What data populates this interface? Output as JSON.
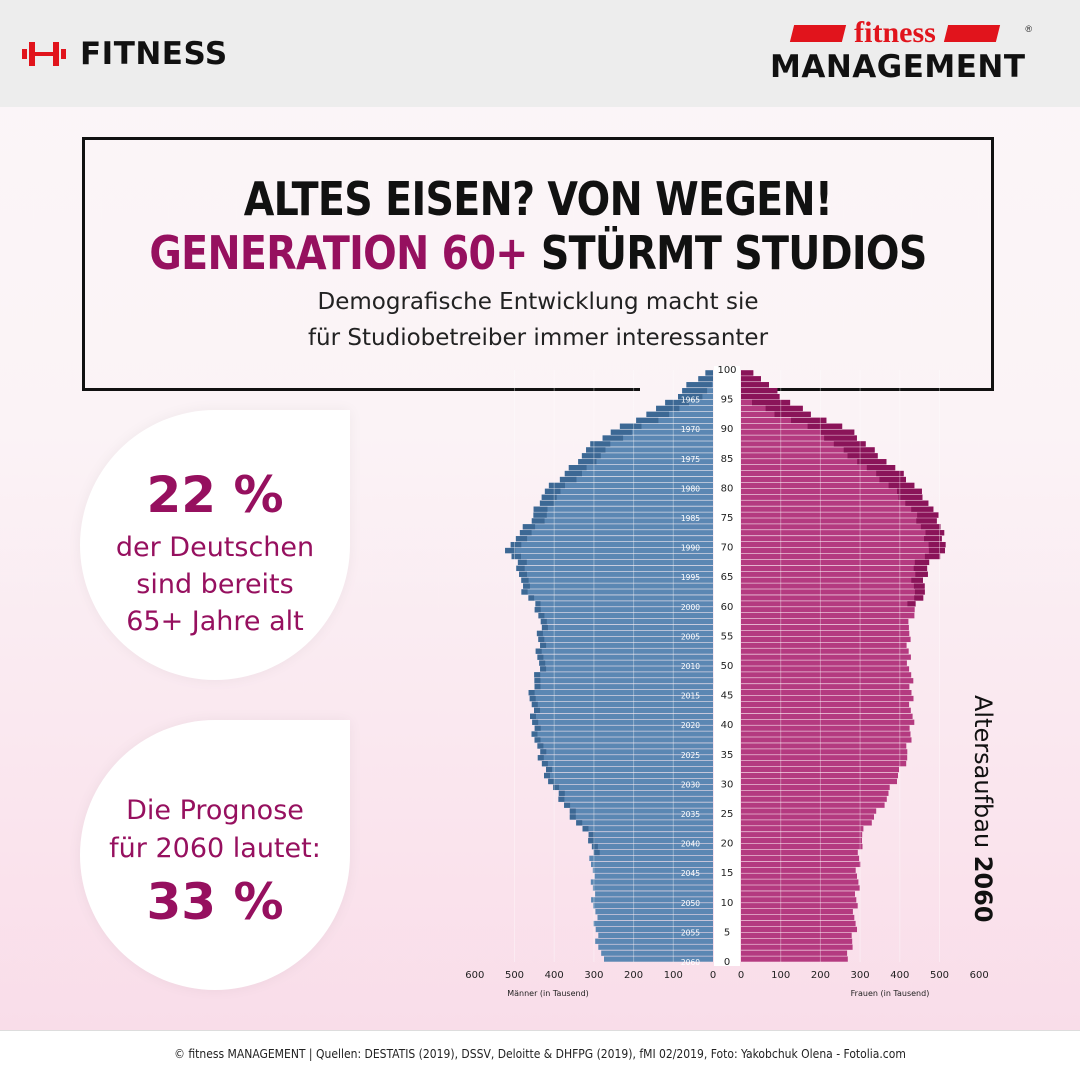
{
  "header": {
    "left_brand": "FITNESS",
    "right_brand_top": "fitness",
    "right_brand_bottom": "MANAGEMENT",
    "registered": "®",
    "brand_red": "#e1141c"
  },
  "headline": {
    "line1": "ALTES EISEN? VON WEGEN!",
    "line2_accent": "GENERATION 60+",
    "line2_rest": " STÜRMT STUDIOS",
    "subtitle_line1": "Demografische Entwicklung macht sie",
    "subtitle_line2": "für Studiobetreiber immer interessanter",
    "accent_color": "#96105f"
  },
  "stat1": {
    "value": "22 %",
    "line1": "der Deutschen",
    "line2": "sind bereits",
    "line3": "65+ Jahre alt"
  },
  "stat2": {
    "line1": "Die Prognose",
    "line2": "für 2060 lautet:",
    "value": "33 %"
  },
  "chart_data": {
    "type": "bar",
    "orientation": "horizontal-pyramid",
    "title_light": "Altersaufbau",
    "title_bold": "2060",
    "left_axis_label": "Männer (in Tausend)",
    "right_axis_label": "Frauen (in Tausend)",
    "x_ticks": [
      600,
      500,
      400,
      300,
      200,
      100,
      0
    ],
    "xlim": [
      0,
      600
    ],
    "age_ticks": [
      0,
      5,
      10,
      15,
      20,
      25,
      30,
      35,
      40,
      45,
      50,
      55,
      60,
      65,
      70,
      75,
      80,
      85,
      90,
      95,
      100
    ],
    "birth_year_labels": [
      "1965",
      "1970",
      "1975",
      "1980",
      "1985",
      "1990",
      "1995",
      "2000",
      "2005",
      "2010",
      "2015",
      "2020",
      "2025",
      "2030",
      "2035",
      "2040",
      "2045",
      "2050",
      "2055",
      "2060"
    ],
    "colors": {
      "men": "#5b87b3",
      "men_dark": "#3c6894",
      "women": "#b43a80",
      "women_dark": "#8a1459"
    },
    "age_keypoints": [
      0,
      2,
      5,
      10,
      15,
      20,
      22,
      25,
      28,
      30,
      35,
      40,
      45,
      50,
      55,
      58,
      60,
      63,
      65,
      67,
      70,
      72,
      75,
      78,
      80,
      83,
      85,
      88,
      90,
      93,
      95,
      98,
      100
    ],
    "men_keypoints": [
      280,
      285,
      295,
      300,
      305,
      305,
      325,
      360,
      390,
      410,
      440,
      455,
      460,
      440,
      440,
      435,
      445,
      485,
      485,
      490,
      525,
      490,
      455,
      440,
      415,
      365,
      340,
      295,
      245,
      155,
      100,
      55,
      10
    ],
    "women_keypoints": [
      270,
      275,
      285,
      290,
      295,
      300,
      310,
      340,
      370,
      385,
      420,
      430,
      430,
      425,
      420,
      430,
      440,
      465,
      465,
      470,
      520,
      510,
      495,
      470,
      445,
      395,
      360,
      305,
      270,
      165,
      110,
      60,
      30
    ]
  },
  "footer": {
    "text": "© fitness MANAGEMENT | Quellen: DESTATIS (2019), DSSV, Deloitte & DHFPG (2019), fMI 02/2019, Foto: Yakobchuk Olena - Fotolia.com"
  }
}
